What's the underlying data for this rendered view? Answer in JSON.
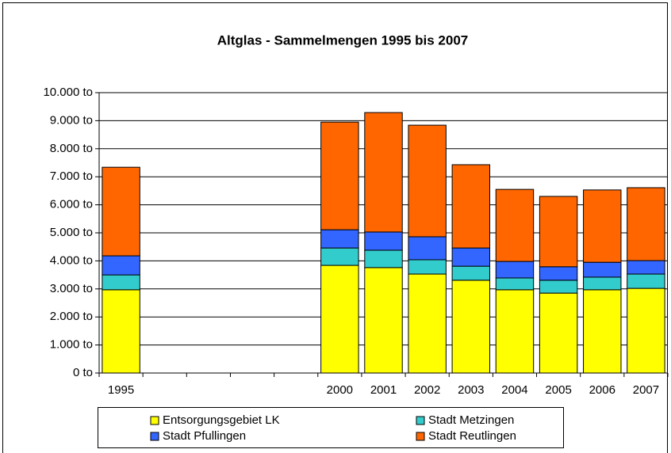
{
  "chart_data": {
    "type": "stacked_bar",
    "title": "Altglas - Sammelmengen 1995 bis 2007",
    "categories": [
      "1995",
      null,
      null,
      null,
      null,
      "2000",
      "2001",
      "2002",
      "2003",
      "2004",
      "2005",
      "2006",
      "2007"
    ],
    "series": [
      {
        "name": "Entsorgungsgebiet LK",
        "color": "#ffff00",
        "values": [
          2970,
          null,
          null,
          null,
          null,
          3840,
          3760,
          3530,
          3310,
          2970,
          2850,
          2970,
          3020
        ]
      },
      {
        "name": "Stadt Metzingen",
        "color": "#33cccc",
        "values": [
          530,
          null,
          null,
          null,
          null,
          620,
          620,
          510,
          500,
          420,
          460,
          450,
          510
        ]
      },
      {
        "name": "Stadt Pfullingen",
        "color": "#3366ff",
        "values": [
          680,
          null,
          null,
          null,
          null,
          650,
          650,
          820,
          650,
          590,
          480,
          530,
          480
        ]
      },
      {
        "name": "Stadt Reutlingen",
        "color": "#ff6600",
        "values": [
          3160,
          null,
          null,
          null,
          null,
          3840,
          4260,
          3980,
          2970,
          2570,
          2510,
          2580,
          2600
        ]
      }
    ],
    "ylim": [
      0,
      10000
    ],
    "yticks": [
      {
        "value": 0,
        "label": "0 to"
      },
      {
        "value": 1000,
        "label": "1.000 to"
      },
      {
        "value": 2000,
        "label": "2.000 to"
      },
      {
        "value": 3000,
        "label": "3.000 to"
      },
      {
        "value": 4000,
        "label": "4.000 to"
      },
      {
        "value": 5000,
        "label": "5.000 to"
      },
      {
        "value": 6000,
        "label": "6.000 to"
      },
      {
        "value": 7000,
        "label": "7.000 to"
      },
      {
        "value": 8000,
        "label": "8.000 to"
      },
      {
        "value": 9000,
        "label": "9.000 to"
      },
      {
        "value": 10000,
        "label": "10.000 to"
      }
    ],
    "grid": true
  }
}
